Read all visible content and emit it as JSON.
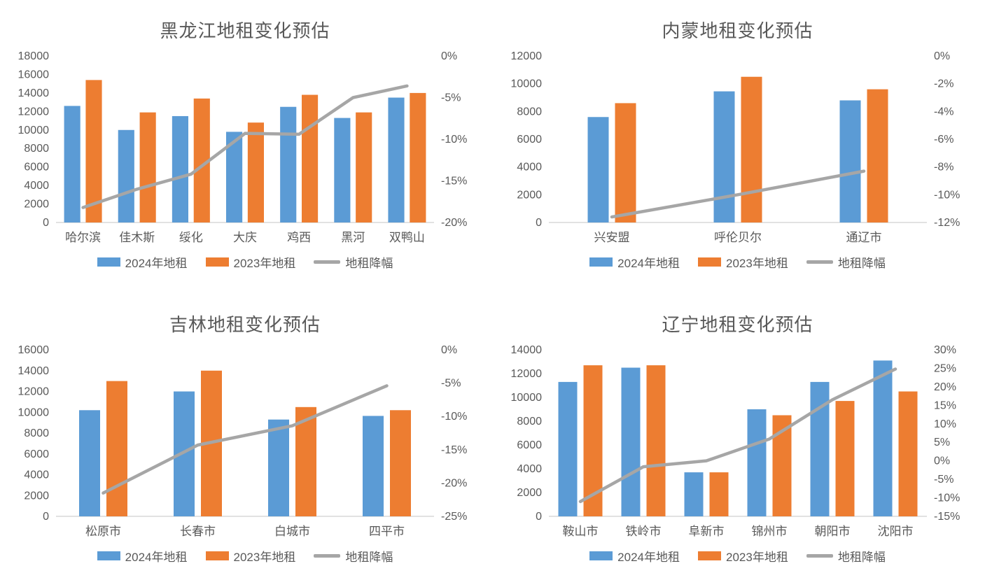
{
  "colors": {
    "bar_2024": "#5B9BD5",
    "bar_2023": "#ED7D31",
    "line": "#A6A6A6",
    "axis_text": "#595959",
    "axis_line": "#D9D9D9",
    "background": "#FFFFFF"
  },
  "chart_data": [
    {
      "type": "bar+line",
      "title": "黑龙江地租变化预估",
      "categories": [
        "哈尔滨",
        "佳木斯",
        "绥化",
        "大庆",
        "鸡西",
        "黑河",
        "双鸭山"
      ],
      "series": [
        {
          "name": "2024年地租",
          "color_key": "bar_2024",
          "values": [
            12600,
            10000,
            11500,
            9800,
            12500,
            11300,
            13500
          ]
        },
        {
          "name": "2023年地租",
          "color_key": "bar_2023",
          "values": [
            15400,
            11900,
            13400,
            10800,
            13800,
            11900,
            14000
          ]
        }
      ],
      "line_series": {
        "name": "地租降幅",
        "axis": "right",
        "values": [
          -18.2,
          -16.0,
          -14.2,
          -9.3,
          -9.4,
          -5.0,
          -3.6
        ]
      },
      "left_axis": {
        "min": 0,
        "max": 18000,
        "step": 2000
      },
      "right_axis": {
        "min": -20,
        "max": 0,
        "step": 5,
        "suffix": "%"
      },
      "grid": false,
      "legend_position": "bottom"
    },
    {
      "type": "bar+line",
      "title": "内蒙地租变化预估",
      "categories": [
        "兴安盟",
        "呼伦贝尔",
        "通辽市"
      ],
      "series": [
        {
          "name": "2024年地租",
          "color_key": "bar_2024",
          "values": [
            7600,
            9450,
            8800
          ]
        },
        {
          "name": "2023年地租",
          "color_key": "bar_2023",
          "values": [
            8600,
            10500,
            9600
          ]
        }
      ],
      "line_series": {
        "name": "地租降幅",
        "axis": "right",
        "values": [
          -11.6,
          -10.0,
          -8.3
        ]
      },
      "left_axis": {
        "min": 0,
        "max": 12000,
        "step": 2000
      },
      "right_axis": {
        "min": -12,
        "max": 0,
        "step": 2,
        "suffix": "%"
      },
      "grid": false,
      "legend_position": "bottom"
    },
    {
      "type": "bar+line",
      "title": "吉林地租变化预估",
      "categories": [
        "松原市",
        "长春市",
        "白城市",
        "四平市"
      ],
      "series": [
        {
          "name": "2024年地租",
          "color_key": "bar_2024",
          "values": [
            10200,
            12000,
            9300,
            9650
          ]
        },
        {
          "name": "2023年地租",
          "color_key": "bar_2023",
          "values": [
            13000,
            14000,
            10500,
            10200
          ]
        }
      ],
      "line_series": {
        "name": "地租降幅",
        "axis": "right",
        "values": [
          -21.5,
          -14.3,
          -11.4,
          -5.4
        ]
      },
      "left_axis": {
        "min": 0,
        "max": 16000,
        "step": 2000
      },
      "right_axis": {
        "min": -25,
        "max": 0,
        "step": 5,
        "suffix": "%"
      },
      "grid": false,
      "legend_position": "bottom"
    },
    {
      "type": "bar+line",
      "title": "辽宁地租变化预估",
      "categories": [
        "鞍山市",
        "铁岭市",
        "阜新市",
        "锦州市",
        "朝阳市",
        "沈阳市"
      ],
      "series": [
        {
          "name": "2024年地租",
          "color_key": "bar_2024",
          "values": [
            11300,
            12500,
            3700,
            9000,
            11300,
            13100
          ]
        },
        {
          "name": "2023年地租",
          "color_key": "bar_2023",
          "values": [
            12700,
            12700,
            3700,
            8500,
            9700,
            10500
          ]
        }
      ],
      "line_series": {
        "name": "地租降幅",
        "axis": "right",
        "values": [
          -11.0,
          -1.6,
          0.0,
          5.9,
          16.5,
          24.8
        ]
      },
      "left_axis": {
        "min": 0,
        "max": 14000,
        "step": 2000
      },
      "right_axis": {
        "min": -15,
        "max": 30,
        "step": 5,
        "suffix": "%"
      },
      "grid": false,
      "legend_position": "bottom"
    }
  ]
}
